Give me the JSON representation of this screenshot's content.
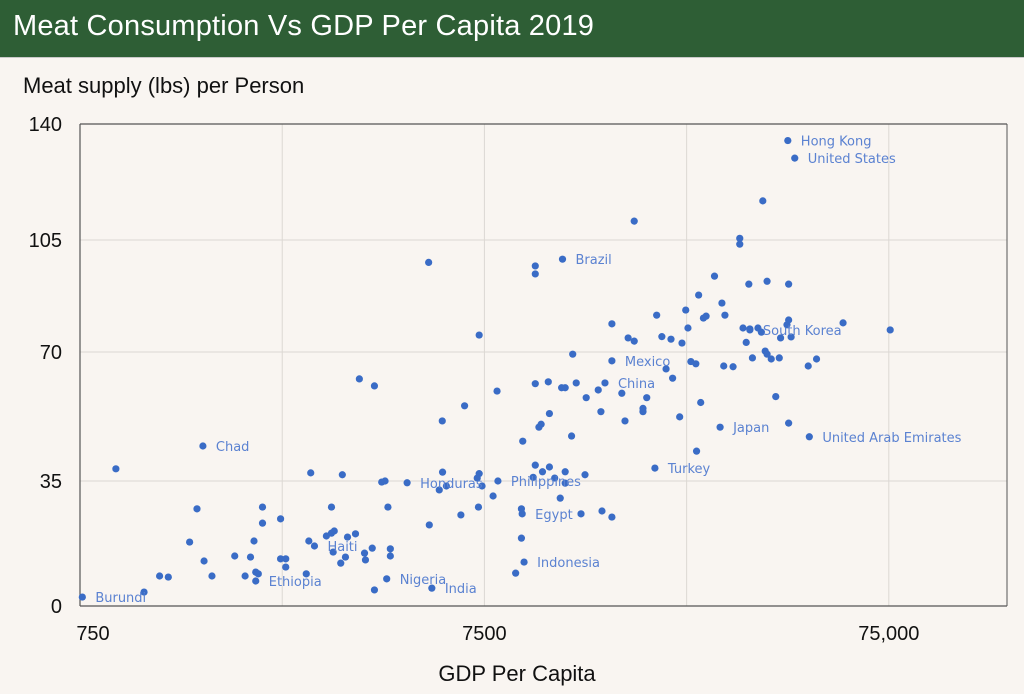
{
  "header": {
    "title": "Meat Consumption Vs GDP Per Capita 2019"
  },
  "colors": {
    "header_bg": "#2e5e35",
    "point": "#3a6cc6",
    "label": "#5b82d1",
    "background": "#f9f5f1"
  },
  "chart_data": {
    "type": "scatter",
    "title": "Meat Consumption Vs GDP Per Capita 2019",
    "xlabel": "GDP Per Capita",
    "ylabel": "Meat supply (lbs) per Person",
    "x_scale": "log",
    "xlim": [
      750,
      147000
    ],
    "ylim": [
      0,
      140
    ],
    "x_ticks": [
      {
        "value": 750,
        "label": "750"
      },
      {
        "value": 7500,
        "label": "7500"
      },
      {
        "value": 75000,
        "label": "75,000"
      }
    ],
    "x_grid": [
      750,
      2372,
      7500,
      23720,
      75000
    ],
    "y_ticks": [
      {
        "value": 0,
        "label": "0"
      },
      {
        "value": 35,
        "label": "35"
      },
      {
        "value": 70,
        "label": "70"
      },
      {
        "value": 105,
        "label": "105"
      },
      {
        "value": 140,
        "label": "140"
      }
    ],
    "grid": true,
    "points": [
      {
        "x": 42200,
        "y": 135,
        "label": "Hong Kong"
      },
      {
        "x": 43900,
        "y": 129.7,
        "label": "United States"
      },
      {
        "x": 11700,
        "y": 99,
        "label": "Brazil"
      },
      {
        "x": 15500,
        "y": 67.6,
        "label": "Mexico"
      },
      {
        "x": 14900,
        "y": 61.6,
        "label": "China"
      },
      {
        "x": 34000,
        "y": 76.9,
        "label": "South Korea"
      },
      {
        "x": 28700,
        "y": 49.6,
        "label": "Japan"
      },
      {
        "x": 47700,
        "y": 47,
        "label": "United Arab Emirates"
      },
      {
        "x": 19800,
        "y": 38.5,
        "label": "Turkey"
      },
      {
        "x": 1510,
        "y": 44.5,
        "label": "Chad"
      },
      {
        "x": 4830,
        "y": 34.5,
        "label": "Honduras"
      },
      {
        "x": 8100,
        "y": 35,
        "label": "Philippines"
      },
      {
        "x": 9300,
        "y": 25.8,
        "label": "Egypt"
      },
      {
        "x": 9400,
        "y": 12.3,
        "label": "Indonesia"
      },
      {
        "x": 2850,
        "y": 16.8,
        "label": "Haiti"
      },
      {
        "x": 2040,
        "y": 7,
        "label": "Ethiopia"
      },
      {
        "x": 4300,
        "y": 7.6,
        "label": "Nigeria"
      },
      {
        "x": 5560,
        "y": 5,
        "label": "India"
      },
      {
        "x": 760,
        "y": 2.5,
        "label": "Burundi"
      },
      {
        "x": 920,
        "y": 38.3
      },
      {
        "x": 1080,
        "y": 3.9
      },
      {
        "x": 1180,
        "y": 8.4
      },
      {
        "x": 1240,
        "y": 8.1
      },
      {
        "x": 1400,
        "y": 17.9
      },
      {
        "x": 1460,
        "y": 27.2
      },
      {
        "x": 1520,
        "y": 12.6
      },
      {
        "x": 1590,
        "y": 8.4
      },
      {
        "x": 1810,
        "y": 14
      },
      {
        "x": 1920,
        "y": 8.4
      },
      {
        "x": 1980,
        "y": 13.7
      },
      {
        "x": 2020,
        "y": 18.2
      },
      {
        "x": 2040,
        "y": 9.5
      },
      {
        "x": 2070,
        "y": 9
      },
      {
        "x": 2120,
        "y": 27.7
      },
      {
        "x": 2120,
        "y": 23.2
      },
      {
        "x": 2350,
        "y": 13.2
      },
      {
        "x": 2420,
        "y": 13.2
      },
      {
        "x": 2420,
        "y": 10.9
      },
      {
        "x": 2350,
        "y": 24.4
      },
      {
        "x": 2720,
        "y": 9
      },
      {
        "x": 2760,
        "y": 18.2
      },
      {
        "x": 2790,
        "y": 37.2
      },
      {
        "x": 3050,
        "y": 19.6
      },
      {
        "x": 3140,
        "y": 20.4
      },
      {
        "x": 3140,
        "y": 27.7
      },
      {
        "x": 3170,
        "y": 15.1
      },
      {
        "x": 3190,
        "y": 21
      },
      {
        "x": 3310,
        "y": 12
      },
      {
        "x": 3340,
        "y": 36.7
      },
      {
        "x": 3400,
        "y": 13.7
      },
      {
        "x": 3440,
        "y": 19.3
      },
      {
        "x": 3600,
        "y": 20.2
      },
      {
        "x": 3680,
        "y": 62.7
      },
      {
        "x": 3790,
        "y": 14.8
      },
      {
        "x": 3810,
        "y": 12.9
      },
      {
        "x": 3960,
        "y": 16.2
      },
      {
        "x": 4010,
        "y": 4.5
      },
      {
        "x": 4010,
        "y": 60.8
      },
      {
        "x": 4180,
        "y": 34.7
      },
      {
        "x": 4260,
        "y": 35
      },
      {
        "x": 4330,
        "y": 27.7
      },
      {
        "x": 4390,
        "y": 16
      },
      {
        "x": 4390,
        "y": 14
      },
      {
        "x": 5460,
        "y": 98
      },
      {
        "x": 5480,
        "y": 22.7
      },
      {
        "x": 5800,
        "y": 32.5
      },
      {
        "x": 5900,
        "y": 51.3
      },
      {
        "x": 5910,
        "y": 37.4
      },
      {
        "x": 6040,
        "y": 33.6
      },
      {
        "x": 6560,
        "y": 25.5
      },
      {
        "x": 6700,
        "y": 55.4
      },
      {
        "x": 7200,
        "y": 35.8
      },
      {
        "x": 7280,
        "y": 75.3
      },
      {
        "x": 7280,
        "y": 37
      },
      {
        "x": 7400,
        "y": 33.6
      },
      {
        "x": 7250,
        "y": 27.7
      },
      {
        "x": 7880,
        "y": 30.8
      },
      {
        "x": 8060,
        "y": 59.4
      },
      {
        "x": 8960,
        "y": 9.2
      },
      {
        "x": 9330,
        "y": 45.8
      },
      {
        "x": 9260,
        "y": 27.2
      },
      {
        "x": 9260,
        "y": 19
      },
      {
        "x": 9900,
        "y": 36
      },
      {
        "x": 10020,
        "y": 96.9
      },
      {
        "x": 10020,
        "y": 94.4
      },
      {
        "x": 10020,
        "y": 39.3
      },
      {
        "x": 10020,
        "y": 61.4
      },
      {
        "x": 10230,
        "y": 49.6
      },
      {
        "x": 10360,
        "y": 50.4
      },
      {
        "x": 10440,
        "y": 37.5
      },
      {
        "x": 10860,
        "y": 38.8
      },
      {
        "x": 10790,
        "y": 61.9
      },
      {
        "x": 10860,
        "y": 53.3
      },
      {
        "x": 11190,
        "y": 35.8
      },
      {
        "x": 11550,
        "y": 30.2
      },
      {
        "x": 11640,
        "y": 60.3
      },
      {
        "x": 11880,
        "y": 60.3
      },
      {
        "x": 11880,
        "y": 37.5
      },
      {
        "x": 11880,
        "y": 34.4
      },
      {
        "x": 12320,
        "y": 47.2
      },
      {
        "x": 12400,
        "y": 69.4
      },
      {
        "x": 12650,
        "y": 61.6
      },
      {
        "x": 13000,
        "y": 25.8
      },
      {
        "x": 13300,
        "y": 36.7
      },
      {
        "x": 13390,
        "y": 57.6
      },
      {
        "x": 14340,
        "y": 59.7
      },
      {
        "x": 14560,
        "y": 53.8
      },
      {
        "x": 14650,
        "y": 26.6
      },
      {
        "x": 15500,
        "y": 78.8
      },
      {
        "x": 15500,
        "y": 24.9
      },
      {
        "x": 16400,
        "y": 58.8
      },
      {
        "x": 16700,
        "y": 51.3
      },
      {
        "x": 17600,
        "y": 110.7
      },
      {
        "x": 17000,
        "y": 74.4
      },
      {
        "x": 17600,
        "y": 73.4
      },
      {
        "x": 18500,
        "y": 54.7
      },
      {
        "x": 18500,
        "y": 53.8
      },
      {
        "x": 18900,
        "y": 57.6
      },
      {
        "x": 20000,
        "y": 81.5
      },
      {
        "x": 20600,
        "y": 74.8
      },
      {
        "x": 21100,
        "y": 65.4
      },
      {
        "x": 21700,
        "y": 74
      },
      {
        "x": 21900,
        "y": 62.9
      },
      {
        "x": 22800,
        "y": 52.4
      },
      {
        "x": 23100,
        "y": 72.8
      },
      {
        "x": 23600,
        "y": 83.1
      },
      {
        "x": 23900,
        "y": 77.5
      },
      {
        "x": 24300,
        "y": 67.4
      },
      {
        "x": 25000,
        "y": 66.8
      },
      {
        "x": 25100,
        "y": 43.1
      },
      {
        "x": 25400,
        "y": 87.8
      },
      {
        "x": 25700,
        "y": 56.3
      },
      {
        "x": 26100,
        "y": 80.6
      },
      {
        "x": 26500,
        "y": 81.2
      },
      {
        "x": 27800,
        "y": 93.7
      },
      {
        "x": 29000,
        "y": 85.3
      },
      {
        "x": 29500,
        "y": 81.5
      },
      {
        "x": 29300,
        "y": 66.2
      },
      {
        "x": 30900,
        "y": 66
      },
      {
        "x": 32100,
        "y": 103.7
      },
      {
        "x": 32100,
        "y": 105.5
      },
      {
        "x": 32700,
        "y": 77.5
      },
      {
        "x": 33300,
        "y": 73
      },
      {
        "x": 33800,
        "y": 91.2
      },
      {
        "x": 34000,
        "y": 77.2
      },
      {
        "x": 34500,
        "y": 68.4
      },
      {
        "x": 35600,
        "y": 77.5
      },
      {
        "x": 36300,
        "y": 76.2
      },
      {
        "x": 36600,
        "y": 116.8
      },
      {
        "x": 37100,
        "y": 70.3
      },
      {
        "x": 37500,
        "y": 92.1
      },
      {
        "x": 37500,
        "y": 69.4
      },
      {
        "x": 38400,
        "y": 68.1
      },
      {
        "x": 39400,
        "y": 57.9
      },
      {
        "x": 40200,
        "y": 68.4
      },
      {
        "x": 40500,
        "y": 74.4
      },
      {
        "x": 42000,
        "y": 78.5
      },
      {
        "x": 42400,
        "y": 80
      },
      {
        "x": 42400,
        "y": 91.2
      },
      {
        "x": 42400,
        "y": 50.7
      },
      {
        "x": 43000,
        "y": 74.7
      },
      {
        "x": 47400,
        "y": 66.2
      },
      {
        "x": 49700,
        "y": 68.1
      },
      {
        "x": 57800,
        "y": 79.1
      },
      {
        "x": 75600,
        "y": 76.9
      }
    ]
  }
}
